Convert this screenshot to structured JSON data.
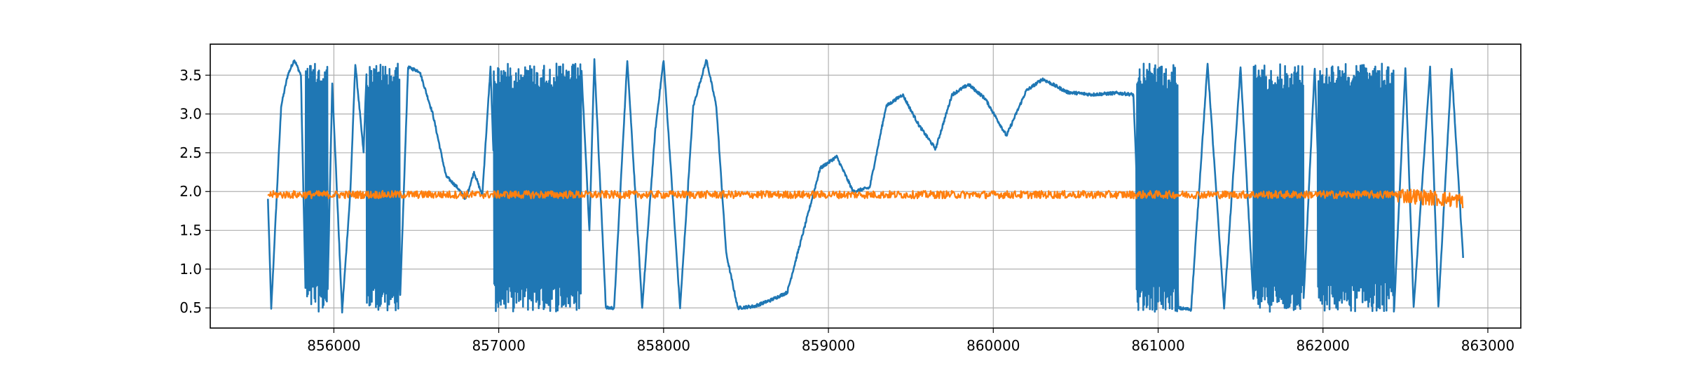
{
  "chart_data": {
    "type": "line",
    "title": "",
    "xlabel": "",
    "ylabel": "",
    "xlim": [
      855250,
      863200
    ],
    "ylim": [
      0.24,
      3.9
    ],
    "grid": true,
    "legend": "none",
    "x_ticks": [
      856000,
      857000,
      858000,
      859000,
      860000,
      861000,
      862000,
      863000
    ],
    "y_ticks": [
      0.5,
      1.0,
      1.5,
      2.0,
      2.5,
      3.0,
      3.5
    ],
    "x_tick_labels": [
      "856000",
      "857000",
      "858000",
      "859000",
      "860000",
      "861000",
      "862000",
      "863000"
    ],
    "y_tick_labels": [
      "0.5",
      "1.0",
      "1.5",
      "2.0",
      "2.5",
      "3.0",
      "3.5"
    ],
    "series": [
      {
        "color": "#1f77b4",
        "x_start": 855600,
        "x_end": 862850,
        "approx_points": [
          [
            855600,
            1.9
          ],
          [
            855620,
            0.48
          ],
          [
            855650,
            1.8
          ],
          [
            855680,
            3.1
          ],
          [
            855720,
            3.5
          ],
          [
            855760,
            3.7
          ],
          [
            855800,
            3.5
          ],
          [
            855830,
            0.5
          ],
          [
            855870,
            3.6
          ],
          [
            855900,
            0.5
          ],
          [
            855940,
            3.65
          ],
          [
            855960,
            0.5
          ],
          [
            855990,
            3.4
          ],
          [
            856050,
            0.45
          ],
          [
            856100,
            2.0
          ],
          [
            856130,
            3.65
          ],
          [
            856180,
            2.5
          ],
          [
            856200,
            3.65
          ],
          [
            856220,
            0.5
          ],
          [
            856300,
            3.6
          ],
          [
            856400,
            0.5
          ],
          [
            856450,
            3.6
          ],
          [
            856520,
            3.55
          ],
          [
            856600,
            3.0
          ],
          [
            856680,
            2.2
          ],
          [
            856750,
            2.05
          ],
          [
            856800,
            1.9
          ],
          [
            856850,
            2.25
          ],
          [
            856900,
            1.95
          ],
          [
            856950,
            3.6
          ],
          [
            857000,
            0.5
          ],
          [
            857100,
            3.7
          ],
          [
            857300,
            0.45
          ],
          [
            857500,
            3.65
          ],
          [
            857550,
            1.5
          ],
          [
            857580,
            3.7
          ],
          [
            857650,
            0.5
          ],
          [
            857700,
            0.5
          ],
          [
            857780,
            3.7
          ],
          [
            857870,
            0.5
          ],
          [
            857950,
            2.8
          ],
          [
            858000,
            3.7
          ],
          [
            858100,
            0.5
          ],
          [
            858180,
            3.1
          ],
          [
            858260,
            3.7
          ],
          [
            858320,
            3.1
          ],
          [
            858380,
            1.2
          ],
          [
            858450,
            0.5
          ],
          [
            858550,
            0.52
          ],
          [
            858650,
            0.6
          ],
          [
            858750,
            0.7
          ],
          [
            858850,
            1.5
          ],
          [
            858950,
            2.3
          ],
          [
            859050,
            2.45
          ],
          [
            859150,
            2.0
          ],
          [
            859250,
            2.05
          ],
          [
            859350,
            3.1
          ],
          [
            859450,
            3.25
          ],
          [
            859550,
            2.85
          ],
          [
            859650,
            2.55
          ],
          [
            859750,
            3.25
          ],
          [
            859850,
            3.38
          ],
          [
            859950,
            3.2
          ],
          [
            860080,
            2.72
          ],
          [
            860200,
            3.3
          ],
          [
            860300,
            3.45
          ],
          [
            860450,
            3.28
          ],
          [
            860600,
            3.25
          ],
          [
            860750,
            3.27
          ],
          [
            860850,
            3.25
          ],
          [
            860900,
            0.5
          ],
          [
            861050,
            3.65
          ],
          [
            861100,
            0.5
          ],
          [
            861200,
            0.48
          ],
          [
            861300,
            3.65
          ],
          [
            861400,
            0.5
          ],
          [
            861500,
            3.6
          ],
          [
            861580,
            0.5
          ],
          [
            861650,
            3.65
          ],
          [
            861880,
            0.5
          ],
          [
            861950,
            3.6
          ],
          [
            862000,
            0.5
          ],
          [
            862200,
            3.7
          ],
          [
            862430,
            0.4
          ],
          [
            862500,
            3.6
          ],
          [
            862550,
            0.5
          ],
          [
            862650,
            3.6
          ],
          [
            862700,
            0.5
          ],
          [
            862780,
            3.6
          ],
          [
            862850,
            1.15
          ]
        ],
        "dense_intervals": [
          [
            855830,
            855960
          ],
          [
            856200,
            856400
          ],
          [
            856970,
            857500
          ],
          [
            860870,
            861120
          ],
          [
            861580,
            861880
          ],
          [
            861970,
            862430
          ]
        ],
        "dense_range": [
          0.45,
          3.65
        ]
      },
      {
        "color": "#ff7f0e",
        "x_start": 855600,
        "x_end": 862850,
        "mean": 1.96,
        "noise": 0.05,
        "end_noise": 0.1
      }
    ]
  }
}
